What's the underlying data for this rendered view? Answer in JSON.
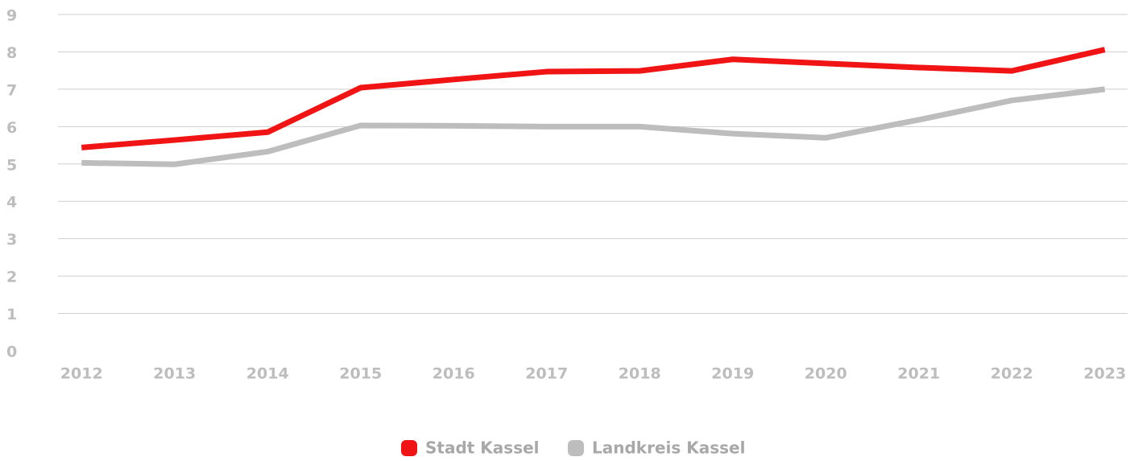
{
  "chart_data": {
    "type": "line",
    "categories": [
      "2012",
      "2013",
      "2014",
      "2015",
      "2016",
      "2017",
      "2018",
      "2019",
      "2020",
      "2021",
      "2022",
      "2023"
    ],
    "series": [
      {
        "name": "Stadt Kassel",
        "color": "#f01414",
        "values": [
          5.44,
          5.64,
          5.85,
          7.04,
          7.26,
          7.47,
          7.49,
          7.8,
          7.69,
          7.58,
          7.49,
          8.06
        ]
      },
      {
        "name": "Landkreis Kassel",
        "color": "#bdbdbd",
        "values": [
          5.03,
          4.99,
          5.33,
          6.03,
          6.02,
          6.0,
          6.0,
          5.81,
          5.7,
          6.18,
          6.7,
          7.0
        ]
      }
    ],
    "ylim": [
      0,
      9
    ],
    "yticks": [
      0,
      1,
      2,
      3,
      4,
      5,
      6,
      7,
      8,
      9
    ],
    "grid": true,
    "legend": "bottom"
  }
}
